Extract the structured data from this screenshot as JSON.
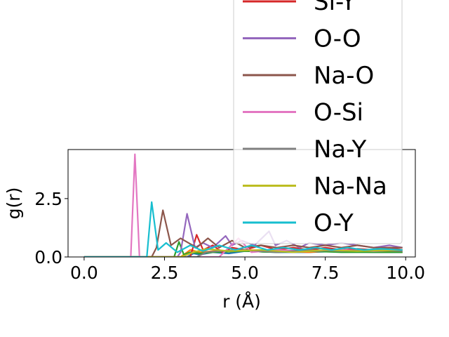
{
  "chart_data": {
    "type": "line",
    "title": "",
    "xlabel": "r (Å)",
    "ylabel": "g(r)",
    "xlim": [
      -0.5,
      10.3
    ],
    "ylim": [
      0,
      4.6
    ],
    "xticks": [
      0.0,
      2.5,
      5.0,
      7.5,
      10.0
    ],
    "xtick_labels": [
      "0.0",
      "2.5",
      "5.0",
      "7.5",
      "10.0"
    ],
    "yticks": [
      0.0,
      2.5
    ],
    "ytick_labels": [
      "0.0",
      "2.5"
    ],
    "grid": false,
    "legend_position": "upper right (extends above the axes)",
    "legend": [
      {
        "label": "Si-Y",
        "color": "#d62728"
      },
      {
        "label": "O-O",
        "color": "#9467bd"
      },
      {
        "label": "Na-O",
        "color": "#8c564b"
      },
      {
        "label": "O-Si",
        "color": "#e377c2"
      },
      {
        "label": "Na-Y",
        "color": "#7f7f7f"
      },
      {
        "label": "Na-Na",
        "color": "#bcbd22"
      },
      {
        "label": "O-Y",
        "color": "#17becf"
      }
    ],
    "series": [
      {
        "color": "#1f77b4",
        "x": [
          0,
          3.2,
          3.4,
          3.6,
          4.0,
          4.5,
          5.0,
          6.0,
          7.0,
          8.0,
          9.0,
          9.9
        ],
        "y": [
          0,
          0,
          0.15,
          0.1,
          0.2,
          0.15,
          0.25,
          0.2,
          0.2,
          0.25,
          0.2,
          0.2
        ]
      },
      {
        "color": "#ff7f0e",
        "x": [
          0,
          3.0,
          3.3,
          3.6,
          4.0,
          5.0,
          6.0,
          7.0,
          8.0,
          9.0,
          9.9
        ],
        "y": [
          0,
          0,
          0.3,
          0.2,
          0.25,
          0.3,
          0.25,
          0.2,
          0.3,
          0.25,
          0.2
        ]
      },
      {
        "color": "#2ca02c",
        "x": [
          0,
          2.8,
          2.95,
          3.1,
          3.3,
          3.6,
          4.0,
          5.0,
          6.0,
          7.0,
          8.0,
          9.0,
          9.9
        ],
        "y": [
          0,
          0,
          0.65,
          0.1,
          0.2,
          0.15,
          0.2,
          0.25,
          0.2,
          0.25,
          0.2,
          0.2,
          0.2
        ]
      },
      {
        "name": "Si-Y",
        "color": "#d62728",
        "x": [
          0,
          3.3,
          3.5,
          3.7,
          4.0,
          4.3,
          4.6,
          5.0,
          5.5,
          6.0,
          6.5,
          7.0,
          7.5,
          8.0,
          8.5,
          9.0,
          9.5,
          9.9
        ],
        "y": [
          0,
          0,
          0.95,
          0.3,
          0.5,
          0.2,
          0.4,
          0.3,
          0.5,
          0.3,
          0.4,
          0.3,
          0.4,
          0.3,
          0.35,
          0.3,
          0.4,
          0.3
        ]
      },
      {
        "name": "O-O",
        "color": "#9467bd",
        "x": [
          0,
          2.9,
          3.0,
          3.2,
          3.45,
          3.7,
          4.0,
          4.4,
          4.6,
          4.9,
          5.3,
          5.6,
          5.75,
          5.95,
          6.3,
          6.7,
          7.0,
          7.5,
          8.0,
          8.5,
          9.0,
          9.5,
          9.9
        ],
        "y": [
          0,
          0,
          0.2,
          1.85,
          0.4,
          0.6,
          0.4,
          0.9,
          0.5,
          0.7,
          0.5,
          0.9,
          1.1,
          0.5,
          0.7,
          0.4,
          0.6,
          0.5,
          0.6,
          0.5,
          0.4,
          0.5,
          0.4
        ]
      },
      {
        "name": "Na-O",
        "color": "#8c564b",
        "x": [
          0,
          2.1,
          2.25,
          2.45,
          2.7,
          3.0,
          3.5,
          3.85,
          4.2,
          4.6,
          5.0,
          5.5,
          6.0,
          6.5,
          7.0,
          7.5,
          8.0,
          8.5,
          9.0,
          9.5,
          9.9
        ],
        "y": [
          0,
          0,
          0.4,
          2.0,
          0.5,
          0.8,
          0.4,
          0.8,
          0.4,
          0.7,
          0.4,
          0.5,
          0.4,
          0.5,
          0.4,
          0.5,
          0.4,
          0.5,
          0.4,
          0.4,
          0.4
        ]
      },
      {
        "name": "O-Si",
        "color": "#e377c2",
        "x": [
          0,
          1.45,
          1.58,
          1.72,
          1.85,
          4.2,
          4.5,
          4.8,
          5.2,
          6.0,
          7.0,
          8.0,
          9.0,
          9.9
        ],
        "y": [
          0,
          0,
          4.4,
          0.0,
          0.0,
          0.0,
          0.4,
          0.8,
          0.2,
          0.3,
          0.25,
          0.3,
          0.25,
          0.3
        ]
      },
      {
        "name": "Na-Y",
        "color": "#7f7f7f",
        "x": [
          0,
          3.5,
          3.8,
          4.2,
          5.0,
          6.0,
          7.0,
          8.0,
          9.0,
          9.9
        ],
        "y": [
          0,
          0,
          0.2,
          0.25,
          0.3,
          0.2,
          0.3,
          0.25,
          0.3,
          0.25
        ]
      },
      {
        "name": "Na-Na",
        "color": "#bcbd22",
        "x": [
          0,
          3.0,
          3.4,
          3.8,
          4.5,
          5.5,
          6.5,
          7.5,
          8.5,
          9.9
        ],
        "y": [
          0,
          0,
          0.2,
          0.35,
          0.25,
          0.3,
          0.2,
          0.3,
          0.25,
          0.3
        ]
      },
      {
        "name": "O-Y",
        "color": "#17becf",
        "x": [
          0,
          1.95,
          2.1,
          2.3,
          2.55,
          2.9,
          3.3,
          3.7,
          4.2,
          4.7,
          5.2,
          5.7,
          6.2,
          6.7,
          7.2,
          7.7,
          8.2,
          8.7,
          9.2,
          9.9
        ],
        "y": [
          0,
          0,
          2.35,
          0.3,
          0.6,
          0.2,
          0.5,
          0.25,
          0.5,
          0.3,
          0.5,
          0.3,
          0.4,
          0.3,
          0.4,
          0.3,
          0.4,
          0.3,
          0.35,
          0.3
        ]
      }
    ]
  }
}
